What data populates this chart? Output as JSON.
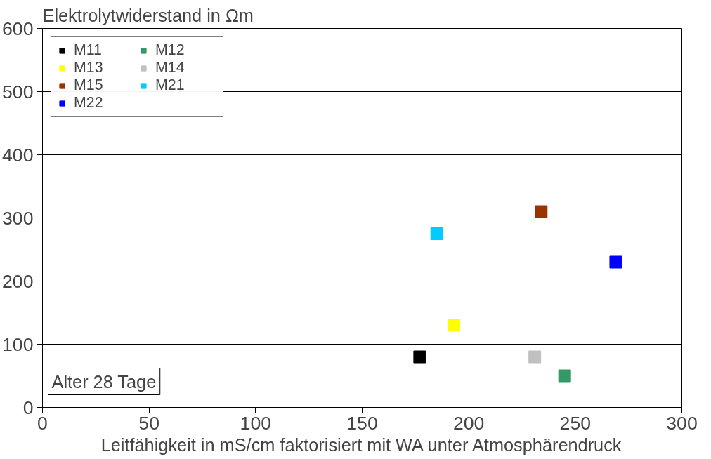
{
  "chart_data": {
    "type": "scatter",
    "ylabel": "Elektrolytwiderstand in Ωm",
    "xlabel": "Leitfähigkeit in mS/cm faktorisiert mit WA unter Atmosphärendruck",
    "xlim": [
      0,
      300
    ],
    "xticks": [
      0,
      50,
      100,
      150,
      200,
      250,
      300
    ],
    "ylim": [
      0,
      600
    ],
    "yticks": [
      0,
      100,
      200,
      300,
      400,
      500,
      600
    ],
    "grid": "y",
    "legend": "top left",
    "marker": "square",
    "annotations": [
      "Alter 28 Tage"
    ],
    "series": [
      {
        "name": "M11",
        "color": "#000000",
        "x": [
          177
        ],
        "values": [
          80
        ]
      },
      {
        "name": "M12",
        "color": "#339966",
        "x": [
          245
        ],
        "values": [
          50
        ]
      },
      {
        "name": "M13",
        "color": "#ffff00",
        "x": [
          193
        ],
        "values": [
          130
        ]
      },
      {
        "name": "M14",
        "color": "#c0c0c0",
        "x": [
          231
        ],
        "values": [
          80
        ]
      },
      {
        "name": "M15",
        "color": "#993300",
        "x": [
          234
        ],
        "values": [
          310
        ]
      },
      {
        "name": "M21",
        "color": "#00ccff",
        "x": [
          185
        ],
        "values": [
          275
        ]
      },
      {
        "name": "M22",
        "color": "#0000ff",
        "x": [
          269
        ],
        "values": [
          230
        ]
      }
    ]
  }
}
